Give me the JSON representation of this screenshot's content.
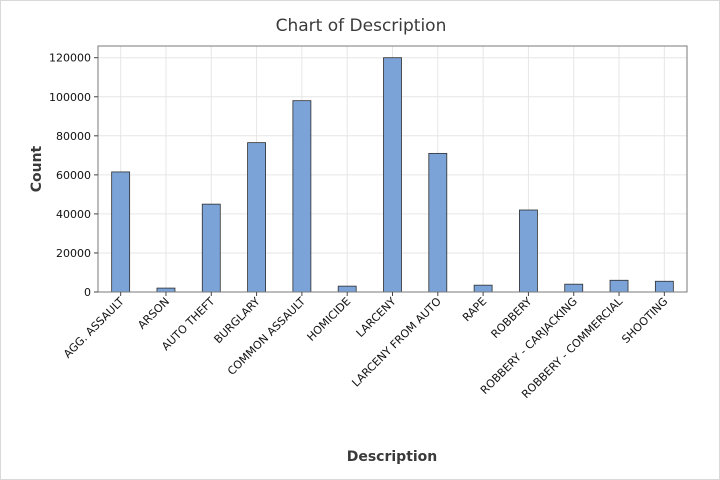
{
  "chart_data": {
    "type": "bar",
    "title": "Chart of Description",
    "xlabel": "Description",
    "ylabel": "Count",
    "categories": [
      "AGG. ASSAULT",
      "ARSON",
      "AUTO THEFT",
      "BURGLARY",
      "COMMON ASSAULT",
      "HOMICIDE",
      "LARCENY",
      "LARCENY FROM AUTO",
      "RAPE",
      "ROBBERY",
      "ROBBERY - CARJACKING",
      "ROBBERY - COMMERCIAL",
      "SHOOTING"
    ],
    "values": [
      61500,
      2000,
      45000,
      76500,
      98000,
      3000,
      120000,
      71000,
      3500,
      42000,
      4000,
      6000,
      5500
    ],
    "ylim": [
      0,
      126000
    ],
    "yticks": [
      0,
      20000,
      40000,
      60000,
      80000,
      100000,
      120000
    ],
    "grid": true,
    "bar_color": "#7ba3d8"
  }
}
